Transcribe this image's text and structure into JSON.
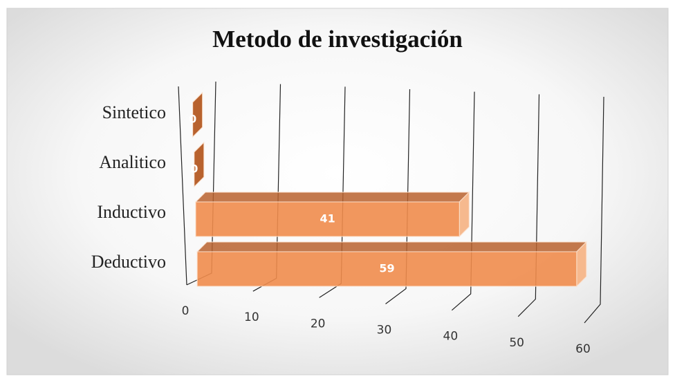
{
  "chart_data": {
    "type": "bar3d",
    "title": "Metodo de investigación",
    "categories": [
      "Sintetico",
      "Analitico",
      "Inductivo",
      "Deductivo"
    ],
    "values": [
      0,
      0,
      41,
      59
    ],
    "color": "#f08c4c",
    "xlim": [
      0,
      60
    ],
    "xticks": [
      0,
      10,
      20,
      30,
      40,
      50,
      60
    ],
    "grid": true
  }
}
